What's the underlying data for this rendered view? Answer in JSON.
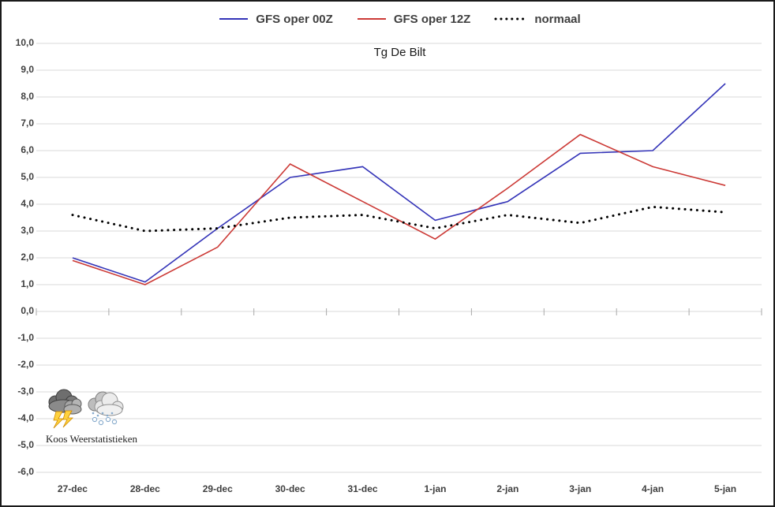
{
  "chart_data": {
    "type": "line",
    "title": "Tg De Bilt",
    "categories": [
      "27-dec",
      "28-dec",
      "29-dec",
      "30-dec",
      "31-dec",
      "1-jan",
      "2-jan",
      "3-jan",
      "4-jan",
      "5-jan"
    ],
    "series": [
      {
        "name": "GFS oper 00Z",
        "color": "#3434b8",
        "line_style": "solid",
        "values": [
          2.0,
          1.1,
          3.1,
          5.0,
          5.4,
          3.4,
          4.1,
          5.9,
          6.0,
          8.5
        ]
      },
      {
        "name": "GFS oper 12Z",
        "color": "#cc3a36",
        "line_style": "solid",
        "values": [
          1.9,
          1.0,
          2.4,
          5.5,
          4.1,
          2.7,
          4.6,
          6.6,
          5.4,
          4.7
        ]
      },
      {
        "name": "normaal",
        "color": "#000000",
        "line_style": "dotted",
        "values": [
          3.6,
          3.0,
          3.1,
          3.5,
          3.6,
          3.1,
          3.6,
          3.3,
          3.9,
          3.7
        ]
      }
    ],
    "xlabel": "",
    "ylabel": "",
    "ylim": [
      -6,
      10
    ],
    "ytick_step": 1,
    "ytick_labels": [
      "10,0",
      "9,0",
      "8,0",
      "7,0",
      "6,0",
      "5,0",
      "4,0",
      "3,0",
      "2,0",
      "1,0",
      "0,0",
      "-1,0",
      "-2,0",
      "-3,0",
      "-4,0",
      "-5,0",
      "-6,0"
    ],
    "grid": "horizontal",
    "legend_position": "top-center",
    "colors": {
      "grid": "#d9d9d9",
      "tick": "#a9a9a9",
      "axis_text": "#3f3f3f",
      "title_text": "#1a1a1a",
      "frame_border": "#1a1a1a"
    }
  },
  "watermark": {
    "text": "Koos Weerstatistieken",
    "icons": [
      "storm-cloud-icon",
      "snow-cloud-icon"
    ]
  }
}
